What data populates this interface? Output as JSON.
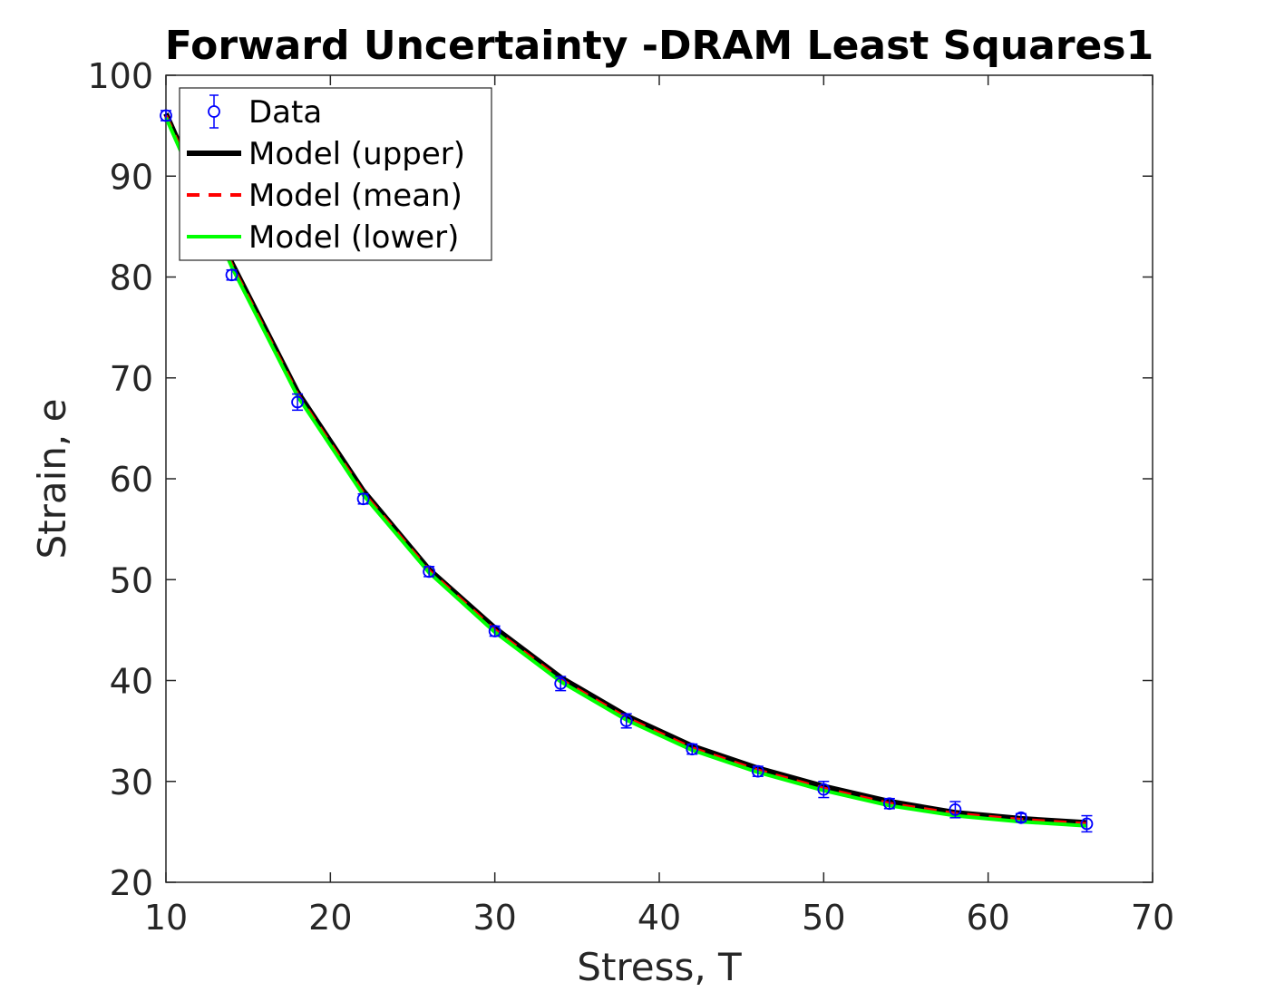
{
  "chart_data": {
    "type": "line",
    "title": "Forward Uncertainty -DRAM Least Squares1",
    "xlabel": "Stress, T",
    "ylabel": "Strain, e",
    "xlim": [
      10,
      70
    ],
    "ylim": [
      20,
      100
    ],
    "xticks": [
      "10",
      "20",
      "30",
      "40",
      "50",
      "60",
      "70"
    ],
    "yticks": [
      "20",
      "30",
      "40",
      "50",
      "60",
      "70",
      "80",
      "90",
      "100"
    ],
    "grid": false,
    "legend_position": "top-left",
    "series": [
      {
        "name": "Data",
        "style": "errorbar-circle",
        "color": "#0000ff",
        "x": [
          10,
          14,
          18,
          22,
          26,
          30,
          34,
          38,
          42,
          46,
          50,
          54,
          58,
          62,
          66
        ],
        "y": [
          96.0,
          80.2,
          67.6,
          58.0,
          50.8,
          44.9,
          39.7,
          36.0,
          33.2,
          31.0,
          29.2,
          27.8,
          27.2,
          26.4,
          25.8
        ],
        "err": [
          0.5,
          0.5,
          0.8,
          0.5,
          0.5,
          0.5,
          0.7,
          0.7,
          0.5,
          0.5,
          0.8,
          0.5,
          0.8,
          0.4,
          0.8
        ]
      },
      {
        "name": "Model (upper)",
        "style": "solid-thick",
        "color": "#000000",
        "x": [
          10,
          14,
          18,
          22,
          26,
          30,
          34,
          38,
          42,
          46,
          50,
          54,
          58,
          62,
          66
        ],
        "y": [
          96.2,
          81.4,
          68.6,
          58.8,
          51.0,
          45.2,
          40.3,
          36.5,
          33.5,
          31.3,
          29.5,
          28.0,
          26.9,
          26.3,
          25.9
        ]
      },
      {
        "name": "Model (mean)",
        "style": "dashed",
        "color": "#ff0000",
        "x": [
          10,
          14,
          18,
          22,
          26,
          30,
          34,
          38,
          42,
          46,
          50,
          54,
          58,
          62,
          66
        ],
        "y": [
          96.0,
          81.2,
          68.4,
          58.6,
          50.9,
          45.0,
          40.1,
          36.3,
          33.3,
          31.1,
          29.3,
          27.8,
          26.8,
          26.2,
          25.8
        ]
      },
      {
        "name": "Model (lower)",
        "style": "solid",
        "color": "#00ff00",
        "x": [
          10,
          14,
          18,
          22,
          26,
          30,
          34,
          38,
          42,
          46,
          50,
          54,
          58,
          62,
          66
        ],
        "y": [
          95.8,
          81.0,
          68.2,
          58.4,
          50.7,
          44.8,
          39.9,
          36.1,
          33.1,
          30.9,
          29.1,
          27.6,
          26.6,
          26.0,
          25.6
        ]
      }
    ]
  }
}
